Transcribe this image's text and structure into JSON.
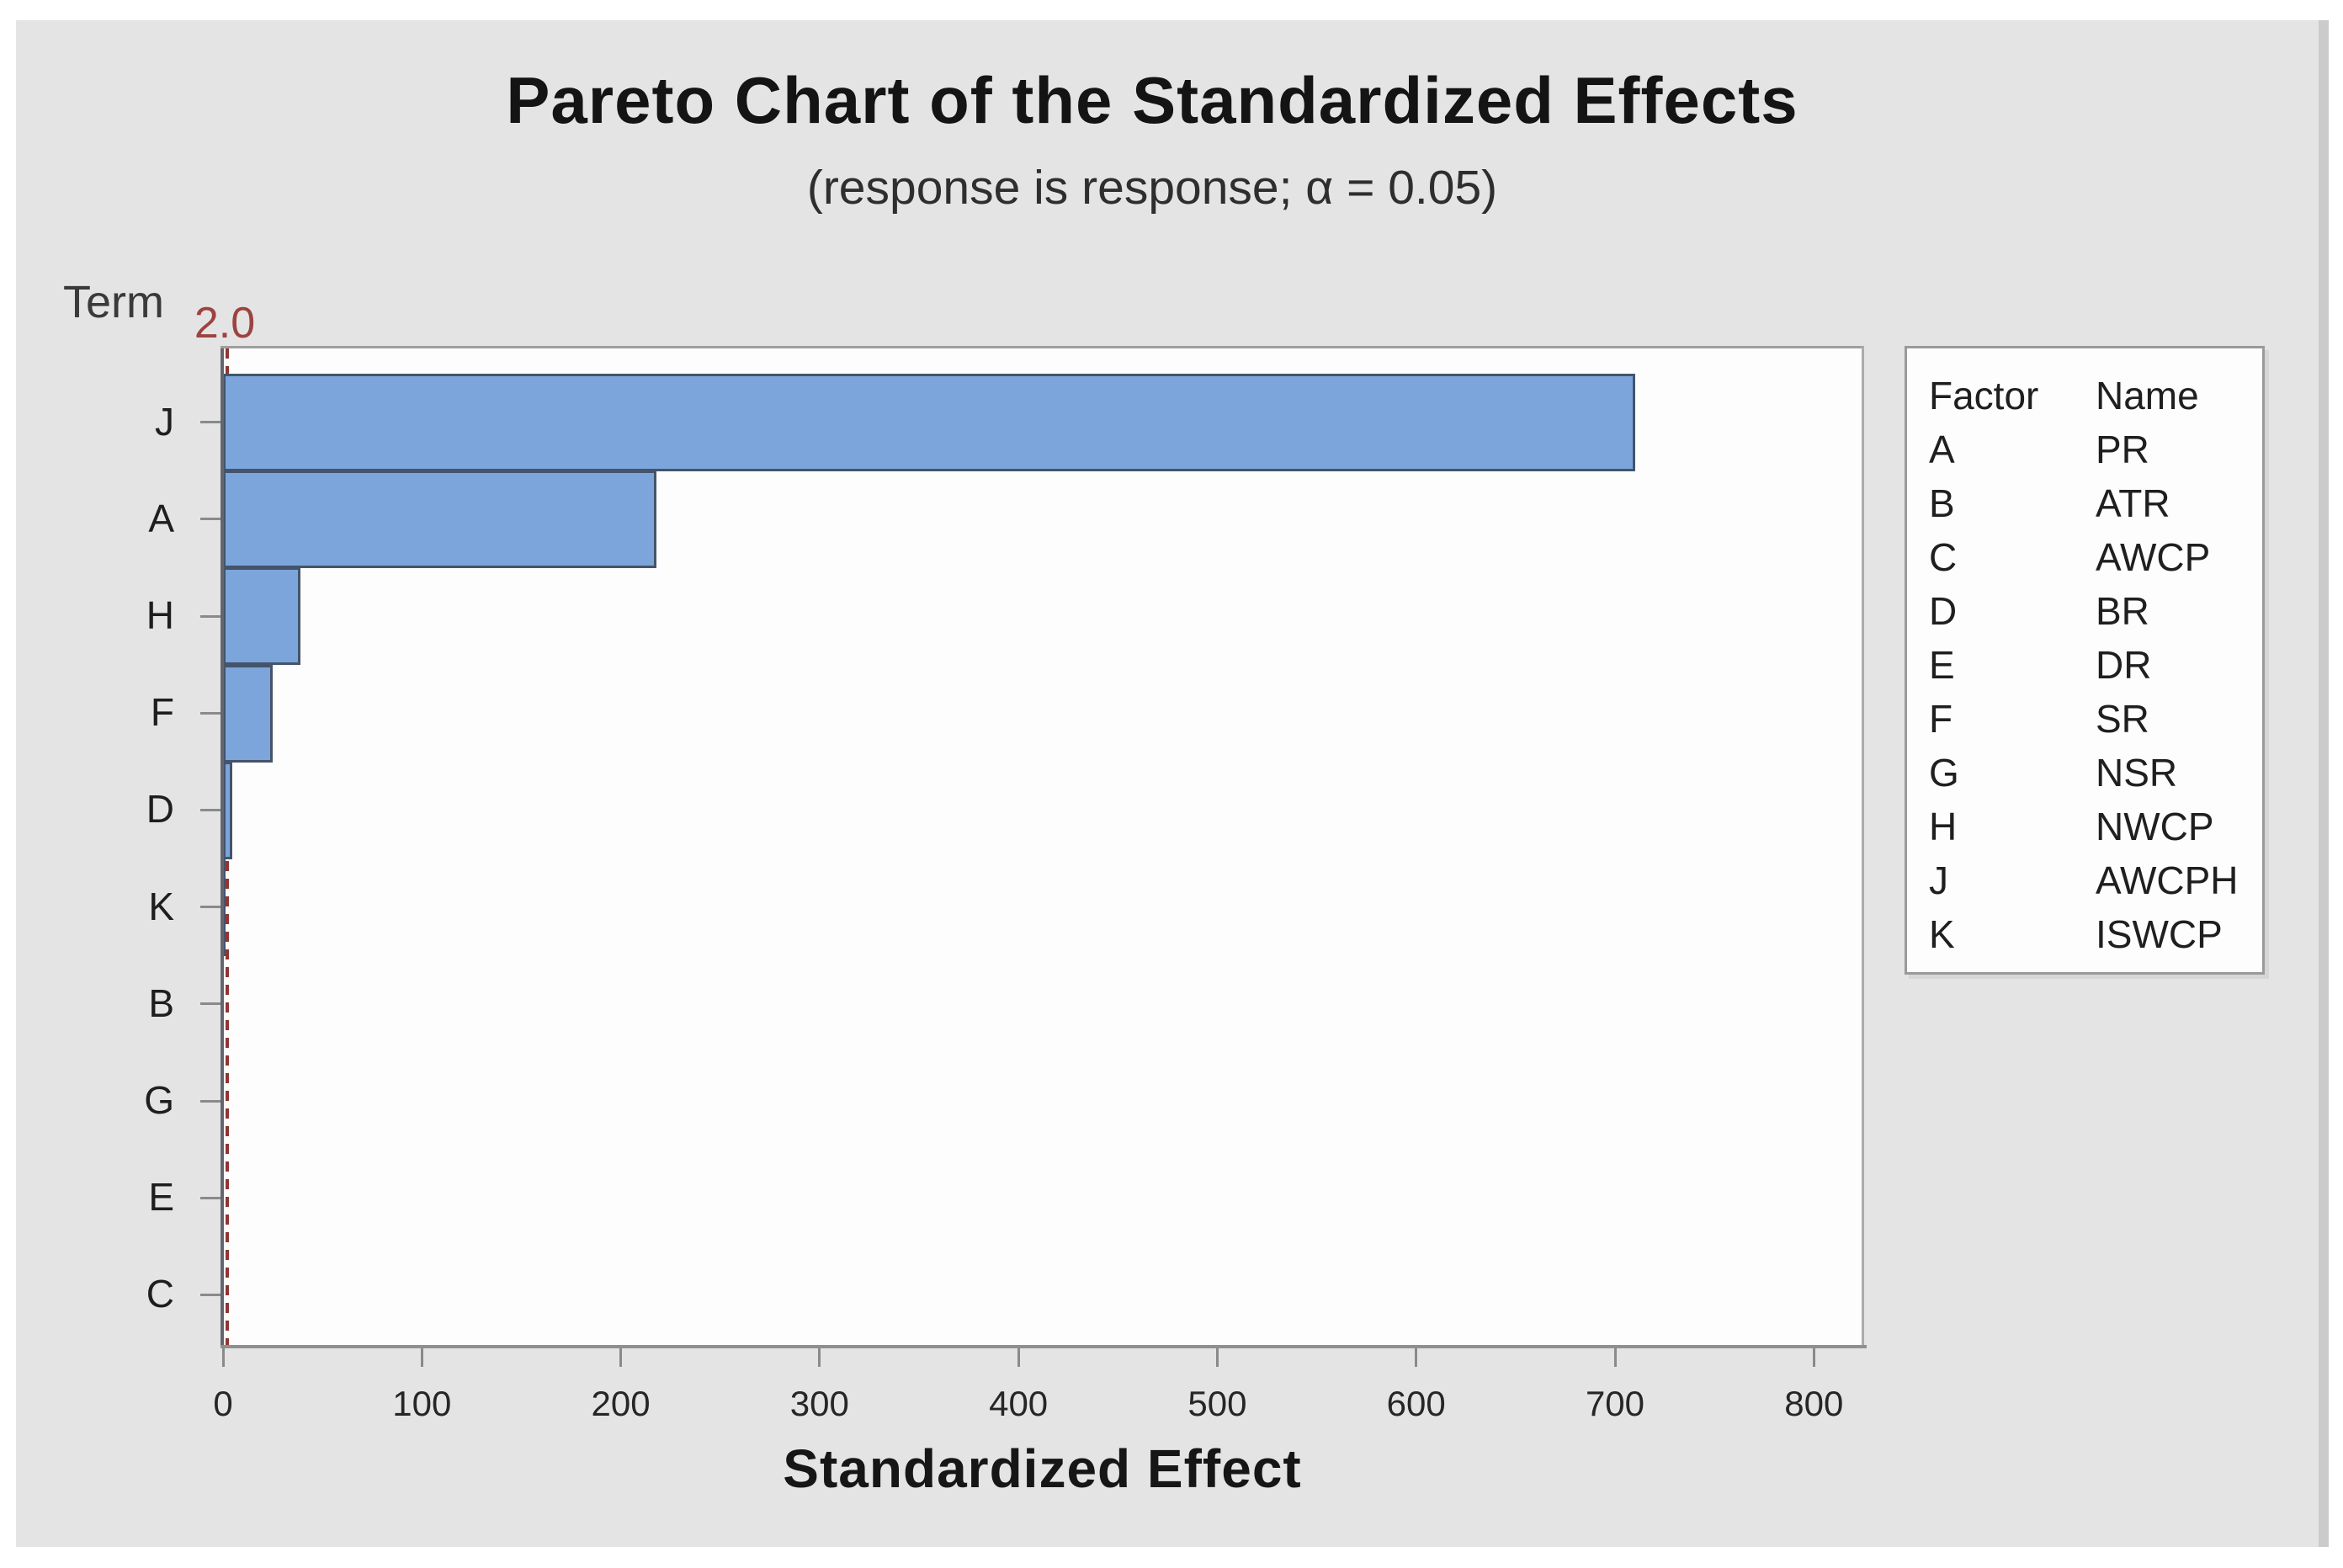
{
  "title": "Pareto Chart of the Standardized Effects",
  "subtitle": "(response is response; α = 0.05)",
  "y_axis_label": "Term",
  "x_axis_label": "Standardized Effect",
  "reference_line": {
    "value": 2.0,
    "label": "2.0",
    "color": "#8F3532"
  },
  "colors": {
    "canvas_background": "#E5E4E4",
    "plot_background": "#FDFDFD",
    "bar_fill": "#7CA5DB",
    "bar_border": "#44546A",
    "reference_line": "#8F3532",
    "axis_gray": "#8A8A8A"
  },
  "chart_data": {
    "type": "bar",
    "orientation": "horizontal",
    "title": "Pareto Chart of the Standardized Effects",
    "subtitle": "(response is response; α = 0.05)",
    "xlabel": "Standardized Effect",
    "ylabel": "Term",
    "categories": [
      "J",
      "A",
      "H",
      "F",
      "D",
      "K",
      "B",
      "G",
      "E",
      "C"
    ],
    "values": [
      710,
      218,
      39,
      25,
      4.5,
      1.4,
      0.3,
      0.25,
      0.2,
      0.15
    ],
    "xlim": [
      0,
      824
    ],
    "x_ticks": [
      0,
      100,
      200,
      300,
      400,
      500,
      600,
      700,
      800
    ],
    "reference_line_value": 2.0,
    "grid": false,
    "legend_position": "right"
  },
  "legend": {
    "headers": [
      "Factor",
      "Name"
    ],
    "rows": [
      {
        "factor": "A",
        "name": "PR"
      },
      {
        "factor": "B",
        "name": "ATR"
      },
      {
        "factor": "C",
        "name": "AWCP"
      },
      {
        "factor": "D",
        "name": "BR"
      },
      {
        "factor": "E",
        "name": "DR"
      },
      {
        "factor": "F",
        "name": "SR"
      },
      {
        "factor": "G",
        "name": "NSR"
      },
      {
        "factor": "H",
        "name": "NWCP"
      },
      {
        "factor": "J",
        "name": "AWCPH"
      },
      {
        "factor": "K",
        "name": "ISWCP"
      }
    ]
  }
}
